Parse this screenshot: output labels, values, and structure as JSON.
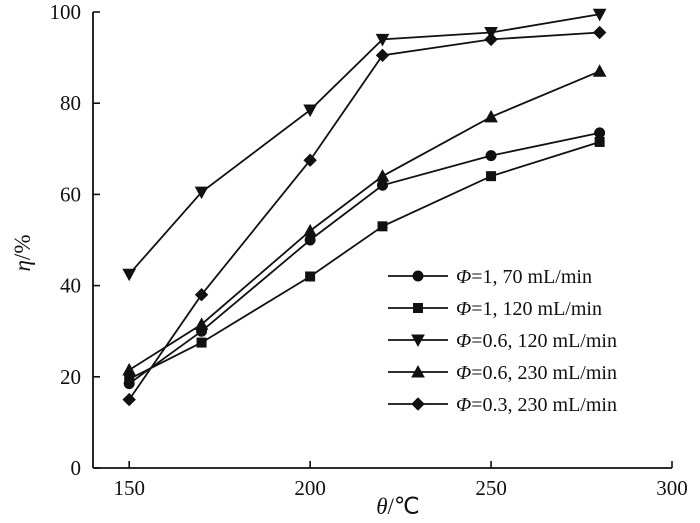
{
  "chart_data": {
    "type": "line",
    "xlabel_symbol": "θ",
    "xlabel_unit": "/℃",
    "ylabel_symbol": "η",
    "ylabel_unit": "/%",
    "xlim": [
      140,
      300
    ],
    "ylim": [
      0,
      100
    ],
    "xticks": [
      150,
      200,
      250,
      300
    ],
    "yticks": [
      0,
      20,
      40,
      60,
      80,
      100
    ],
    "grid": false,
    "legend_position": "bottom-right",
    "x": [
      150,
      170,
      200,
      220,
      250,
      280
    ],
    "series": [
      {
        "name_symbol": "Φ",
        "name_rest": "=1,   70 mL/min",
        "marker": "circle",
        "values": [
          18.5,
          30.0,
          50.0,
          62.0,
          68.5,
          73.5
        ]
      },
      {
        "name_symbol": "Φ",
        "name_rest": "=1,   120 mL/min",
        "marker": "square",
        "values": [
          19.5,
          27.5,
          42.0,
          53.0,
          64.0,
          71.5
        ]
      },
      {
        "name_symbol": "Φ",
        "name_rest": "=0.6, 120 mL/min",
        "marker": "triangle-down",
        "values": [
          42.5,
          60.5,
          78.5,
          94.0,
          95.5,
          99.5
        ]
      },
      {
        "name_symbol": "Φ",
        "name_rest": "=0.6, 230 mL/min",
        "marker": "triangle-up",
        "values": [
          21.5,
          31.5,
          52.0,
          64.0,
          77.0,
          87.0
        ]
      },
      {
        "name_symbol": "Φ",
        "name_rest": "=0.3, 230 mL/min",
        "marker": "diamond",
        "values": [
          15.0,
          38.0,
          67.5,
          90.5,
          94.0,
          95.5
        ]
      }
    ]
  }
}
